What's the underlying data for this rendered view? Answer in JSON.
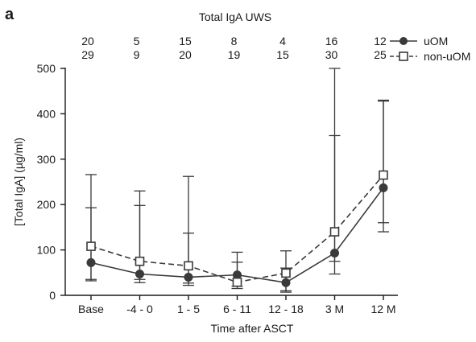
{
  "panel_label": "a",
  "chart_data": {
    "type": "line",
    "title": "Total IgA UWS",
    "xlabel": "Time after ASCT",
    "ylabel": "[Total IgA] (µg/ml)",
    "categories": [
      "Base",
      "-4 - 0",
      "1 - 5",
      "6 - 11",
      "12 - 18",
      "3 M",
      "12 M"
    ],
    "ylim": [
      0,
      500
    ],
    "yticks": [
      0,
      100,
      200,
      300,
      400,
      500
    ],
    "grid": false,
    "legend_position": "top-right",
    "series": [
      {
        "name": "uOM",
        "marker": "filled-circle",
        "line_style": "solid",
        "color": "#3a3a3a",
        "values": [
          72,
          47,
          40,
          45,
          28,
          93,
          237
        ],
        "err_low": [
          35,
          28,
          22,
          20,
          10,
          47,
          140
        ],
        "err_high": [
          193,
          198,
          137,
          73,
          60,
          500,
          430
        ],
        "n": [
          "20",
          "5",
          "15",
          "8",
          "4",
          "16",
          "12"
        ]
      },
      {
        "name": "non-uOM",
        "marker": "open-square",
        "line_style": "dashed",
        "color": "#3a3a3a",
        "values": [
          108,
          75,
          65,
          29,
          49,
          140,
          265
        ],
        "err_low": [
          32,
          35,
          27,
          15,
          7,
          75,
          160
        ],
        "err_high": [
          266,
          230,
          262,
          95,
          98,
          352,
          428
        ],
        "n": [
          "29",
          "9",
          "20",
          "19",
          "15",
          "30",
          "25"
        ]
      }
    ]
  }
}
